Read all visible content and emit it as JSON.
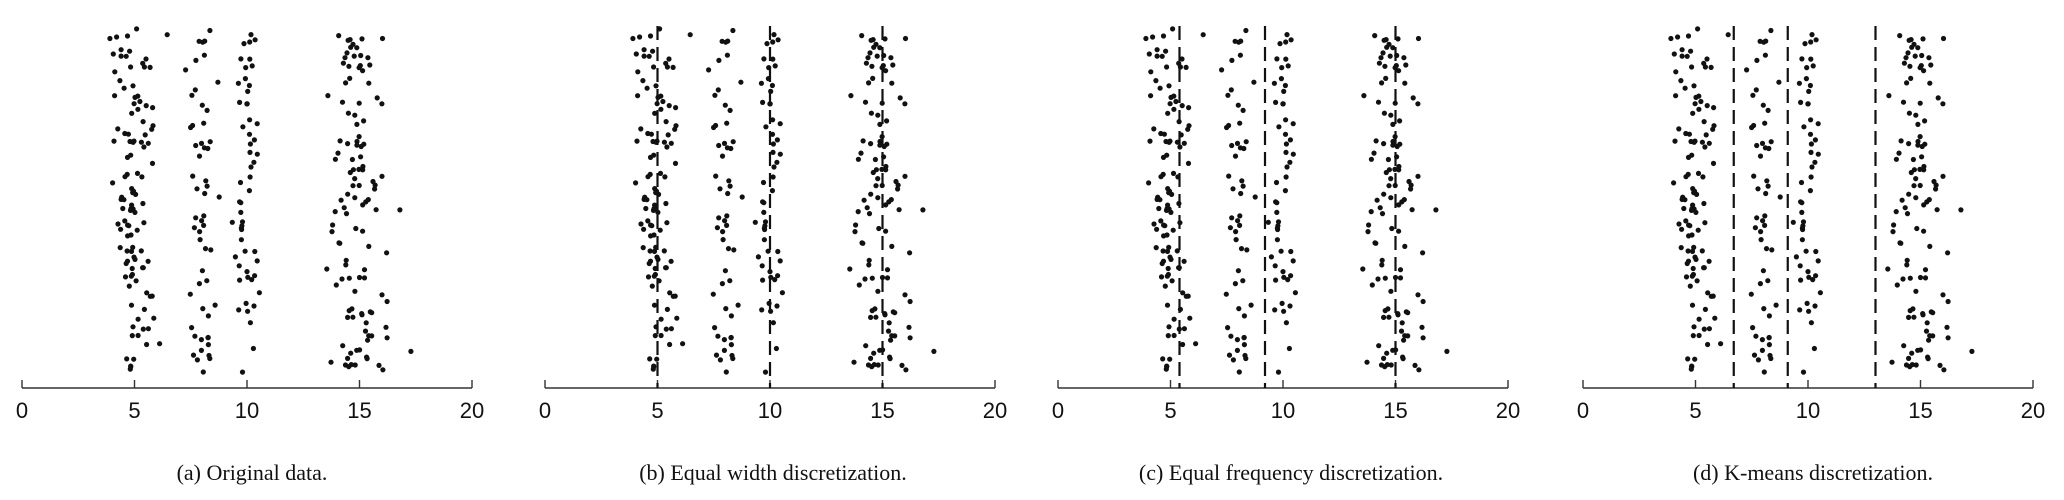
{
  "colors": {
    "points": "#111111",
    "axis": "#333333",
    "cut_lines": "#111111"
  },
  "chart_data": [
    {
      "type": "scatter",
      "xlim": [
        0,
        20
      ],
      "xticks": [
        0,
        5,
        10,
        15,
        20
      ],
      "tick_labels": [
        "0",
        "5",
        "10",
        "15",
        "20"
      ],
      "caption": "(a) Original data.",
      "clusters": [
        {
          "center": 5.0,
          "spread": 0.55,
          "count": 110
        },
        {
          "center": 8.0,
          "spread": 0.3,
          "count": 55
        },
        {
          "center": 10.0,
          "spread": 0.3,
          "count": 55
        },
        {
          "center": 15.0,
          "spread": 0.6,
          "count": 115
        }
      ],
      "cut_points": []
    },
    {
      "type": "scatter",
      "xlim": [
        0,
        20
      ],
      "xticks": [
        0,
        5,
        10,
        15,
        20
      ],
      "tick_labels": [
        "0",
        "5",
        "10",
        "15",
        "20"
      ],
      "caption": "(b) Equal width discretization.",
      "clusters": [
        {
          "center": 5.0,
          "spread": 0.55,
          "count": 110
        },
        {
          "center": 8.0,
          "spread": 0.3,
          "count": 55
        },
        {
          "center": 10.0,
          "spread": 0.3,
          "count": 55
        },
        {
          "center": 15.0,
          "spread": 0.6,
          "count": 115
        }
      ],
      "cut_points": [
        5.0,
        10.0,
        15.0
      ]
    },
    {
      "type": "scatter",
      "xlim": [
        0,
        20
      ],
      "xticks": [
        0,
        5,
        10,
        15,
        20
      ],
      "tick_labels": [
        "0",
        "5",
        "10",
        "15",
        "20"
      ],
      "caption": "(c) Equal frequency discretization.",
      "clusters": [
        {
          "center": 5.0,
          "spread": 0.55,
          "count": 110
        },
        {
          "center": 8.0,
          "spread": 0.3,
          "count": 55
        },
        {
          "center": 10.0,
          "spread": 0.3,
          "count": 55
        },
        {
          "center": 15.0,
          "spread": 0.6,
          "count": 115
        }
      ],
      "cut_points": [
        5.4,
        9.2,
        15.0
      ]
    },
    {
      "type": "scatter",
      "xlim": [
        0,
        20
      ],
      "xticks": [
        0,
        5,
        10,
        15,
        20
      ],
      "tick_labels": [
        "0",
        "5",
        "10",
        "15",
        "20"
      ],
      "caption": "(d) K-means discretization.",
      "clusters": [
        {
          "center": 5.0,
          "spread": 0.55,
          "count": 110
        },
        {
          "center": 8.0,
          "spread": 0.3,
          "count": 55
        },
        {
          "center": 10.0,
          "spread": 0.3,
          "count": 55
        },
        {
          "center": 15.0,
          "spread": 0.6,
          "count": 115
        }
      ],
      "cut_points": [
        6.7,
        9.1,
        13.0
      ]
    }
  ]
}
